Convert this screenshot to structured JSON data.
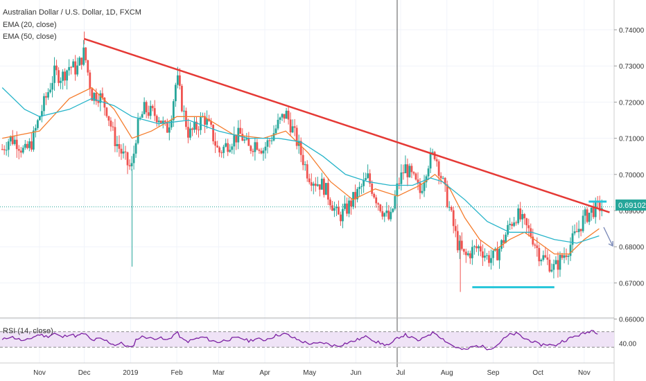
{
  "chart_data": {
    "type": "candlestick",
    "title": "Australian Dollar / U.S. Dollar, 1D, FXCM",
    "indicators": [
      "EMA (20, close)",
      "EMA (50, close)"
    ],
    "ylim": [
      0.66,
      0.745
    ],
    "price_ticks": [
      "0.74000",
      "0.73000",
      "0.72000",
      "0.71000",
      "0.70000",
      "0.69000",
      "0.68000",
      "0.67000",
      "0.66000"
    ],
    "current_price": "0.69102",
    "x_ticks": [
      {
        "label": "Nov",
        "day": 0
      },
      {
        "label": "Dec",
        "day": 30
      },
      {
        "label": "2019",
        "day": 61
      },
      {
        "label": "Feb",
        "day": 92
      },
      {
        "label": "Mar",
        "day": 120
      },
      {
        "label": "Apr",
        "day": 151
      },
      {
        "label": "May",
        "day": 181
      },
      {
        "label": "Jun",
        "day": 212
      },
      {
        "label": "Jul",
        "day": 242
      },
      {
        "label": "Aug",
        "day": 273
      },
      {
        "label": "Sep",
        "day": 304
      },
      {
        "label": "Oct",
        "day": 334
      },
      {
        "label": "Nov",
        "day": 365
      }
    ],
    "close_path": [
      [
        -25,
        0.707
      ],
      [
        -20,
        0.71
      ],
      [
        -15,
        0.709
      ],
      [
        -10,
        0.706
      ],
      [
        -5,
        0.709
      ],
      [
        0,
        0.716
      ],
      [
        5,
        0.722
      ],
      [
        10,
        0.728
      ],
      [
        15,
        0.727
      ],
      [
        20,
        0.73
      ],
      [
        25,
        0.729
      ],
      [
        30,
        0.734
      ],
      [
        35,
        0.722
      ],
      [
        40,
        0.722
      ],
      [
        45,
        0.718
      ],
      [
        50,
        0.71
      ],
      [
        55,
        0.706
      ],
      [
        60,
        0.702
      ],
      [
        62,
        0.702
      ],
      [
        65,
        0.712
      ],
      [
        70,
        0.718
      ],
      [
        75,
        0.717
      ],
      [
        80,
        0.716
      ],
      [
        85,
        0.712
      ],
      [
        88,
        0.716
      ],
      [
        92,
        0.727
      ],
      [
        96,
        0.718
      ],
      [
        100,
        0.711
      ],
      [
        105,
        0.713
      ],
      [
        110,
        0.716
      ],
      [
        115,
        0.712
      ],
      [
        120,
        0.706
      ],
      [
        125,
        0.708
      ],
      [
        130,
        0.71
      ],
      [
        135,
        0.711
      ],
      [
        140,
        0.707
      ],
      [
        145,
        0.709
      ],
      [
        150,
        0.707
      ],
      [
        155,
        0.71
      ],
      [
        160,
        0.714
      ],
      [
        165,
        0.717
      ],
      [
        170,
        0.712
      ],
      [
        175,
        0.706
      ],
      [
        180,
        0.7
      ],
      [
        185,
        0.698
      ],
      [
        190,
        0.697
      ],
      [
        195,
        0.693
      ],
      [
        200,
        0.688
      ],
      [
        205,
        0.69
      ],
      [
        210,
        0.693
      ],
      [
        215,
        0.696
      ],
      [
        220,
        0.699
      ],
      [
        225,
        0.694
      ],
      [
        230,
        0.69
      ],
      [
        235,
        0.687
      ],
      [
        240,
        0.697
      ],
      [
        245,
        0.702
      ],
      [
        250,
        0.699
      ],
      [
        255,
        0.695
      ],
      [
        260,
        0.703
      ],
      [
        265,
        0.706
      ],
      [
        270,
        0.698
      ],
      [
        275,
        0.69
      ],
      [
        280,
        0.681
      ],
      [
        285,
        0.677
      ],
      [
        290,
        0.679
      ],
      [
        295,
        0.68
      ],
      [
        300,
        0.677
      ],
      [
        305,
        0.677
      ],
      [
        310,
        0.681
      ],
      [
        315,
        0.686
      ],
      [
        320,
        0.689
      ],
      [
        325,
        0.686
      ],
      [
        330,
        0.683
      ],
      [
        335,
        0.678
      ],
      [
        340,
        0.676
      ],
      [
        345,
        0.674
      ],
      [
        350,
        0.677
      ],
      [
        355,
        0.68
      ],
      [
        360,
        0.684
      ],
      [
        365,
        0.688
      ],
      [
        370,
        0.69
      ],
      [
        375,
        0.691
      ]
    ],
    "ema20_path": [
      [
        -25,
        0.71
      ],
      [
        0,
        0.712
      ],
      [
        20,
        0.721
      ],
      [
        35,
        0.724
      ],
      [
        50,
        0.718
      ],
      [
        62,
        0.71
      ],
      [
        75,
        0.712
      ],
      [
        92,
        0.716
      ],
      [
        110,
        0.716
      ],
      [
        130,
        0.711
      ],
      [
        150,
        0.71
      ],
      [
        165,
        0.712
      ],
      [
        180,
        0.706
      ],
      [
        195,
        0.698
      ],
      [
        210,
        0.693
      ],
      [
        225,
        0.696
      ],
      [
        240,
        0.694
      ],
      [
        255,
        0.697
      ],
      [
        265,
        0.7
      ],
      [
        275,
        0.696
      ],
      [
        285,
        0.688
      ],
      [
        295,
        0.682
      ],
      [
        305,
        0.679
      ],
      [
        315,
        0.682
      ],
      [
        325,
        0.684
      ],
      [
        335,
        0.681
      ],
      [
        345,
        0.678
      ],
      [
        355,
        0.678
      ],
      [
        365,
        0.682
      ],
      [
        375,
        0.685
      ]
    ],
    "ema50_path": [
      [
        -25,
        0.724
      ],
      [
        -10,
        0.718
      ],
      [
        0,
        0.716
      ],
      [
        20,
        0.718
      ],
      [
        35,
        0.721
      ],
      [
        50,
        0.719
      ],
      [
        62,
        0.716
      ],
      [
        80,
        0.714
      ],
      [
        100,
        0.715
      ],
      [
        120,
        0.712
      ],
      [
        140,
        0.71
      ],
      [
        160,
        0.71
      ],
      [
        175,
        0.709
      ],
      [
        190,
        0.705
      ],
      [
        205,
        0.7
      ],
      [
        220,
        0.698
      ],
      [
        235,
        0.697
      ],
      [
        250,
        0.697
      ],
      [
        262,
        0.699
      ],
      [
        270,
        0.698
      ],
      [
        285,
        0.693
      ],
      [
        300,
        0.687
      ],
      [
        315,
        0.684
      ],
      [
        330,
        0.684
      ],
      [
        345,
        0.682
      ],
      [
        360,
        0.681
      ],
      [
        375,
        0.683
      ]
    ],
    "trendline": {
      "start": [
        30,
        0.7375
      ],
      "end": [
        382,
        0.6895
      ]
    },
    "support_line": {
      "start": [
        290,
        0.6688
      ],
      "end": [
        345,
        0.6688
      ]
    },
    "resistance_marker": {
      "start": [
        368,
        0.6925
      ],
      "end": [
        380,
        0.6925
      ]
    },
    "rsi": {
      "label": "RSI (14, close)",
      "tick": "40.00",
      "ylim": [
        0,
        100
      ],
      "band": [
        30,
        70
      ],
      "values": [
        [
          -25,
          48
        ],
        [
          -20,
          58
        ],
        [
          -15,
          52
        ],
        [
          -10,
          45
        ],
        [
          -5,
          55
        ],
        [
          0,
          63
        ],
        [
          5,
          57
        ],
        [
          10,
          66
        ],
        [
          15,
          55
        ],
        [
          20,
          64
        ],
        [
          25,
          58
        ],
        [
          30,
          66
        ],
        [
          35,
          47
        ],
        [
          40,
          52
        ],
        [
          45,
          46
        ],
        [
          50,
          36
        ],
        [
          55,
          40
        ],
        [
          60,
          30
        ],
        [
          62,
          28
        ],
        [
          65,
          52
        ],
        [
          70,
          58
        ],
        [
          75,
          52
        ],
        [
          80,
          55
        ],
        [
          85,
          47
        ],
        [
          88,
          55
        ],
        [
          92,
          69
        ],
        [
          96,
          48
        ],
        [
          100,
          45
        ],
        [
          105,
          52
        ],
        [
          110,
          56
        ],
        [
          115,
          47
        ],
        [
          120,
          43
        ],
        [
          125,
          49
        ],
        [
          130,
          52
        ],
        [
          135,
          54
        ],
        [
          140,
          46
        ],
        [
          145,
          52
        ],
        [
          150,
          48
        ],
        [
          155,
          55
        ],
        [
          160,
          62
        ],
        [
          165,
          64
        ],
        [
          170,
          54
        ],
        [
          175,
          46
        ],
        [
          180,
          40
        ],
        [
          185,
          38
        ],
        [
          190,
          42
        ],
        [
          195,
          36
        ],
        [
          200,
          33
        ],
        [
          205,
          40
        ],
        [
          210,
          45
        ],
        [
          215,
          52
        ],
        [
          220,
          58
        ],
        [
          225,
          45
        ],
        [
          230,
          38
        ],
        [
          235,
          35
        ],
        [
          240,
          55
        ],
        [
          245,
          62
        ],
        [
          250,
          53
        ],
        [
          255,
          46
        ],
        [
          260,
          62
        ],
        [
          265,
          68
        ],
        [
          270,
          52
        ],
        [
          275,
          38
        ],
        [
          280,
          28
        ],
        [
          285,
          22
        ],
        [
          290,
          31
        ],
        [
          295,
          34
        ],
        [
          300,
          27
        ],
        [
          305,
          30
        ],
        [
          310,
          48
        ],
        [
          315,
          62
        ],
        [
          320,
          65
        ],
        [
          325,
          52
        ],
        [
          330,
          46
        ],
        [
          335,
          36
        ],
        [
          340,
          38
        ],
        [
          345,
          33
        ],
        [
          350,
          45
        ],
        [
          355,
          52
        ],
        [
          360,
          60
        ],
        [
          365,
          65
        ],
        [
          370,
          74
        ],
        [
          375,
          66
        ]
      ]
    }
  }
}
